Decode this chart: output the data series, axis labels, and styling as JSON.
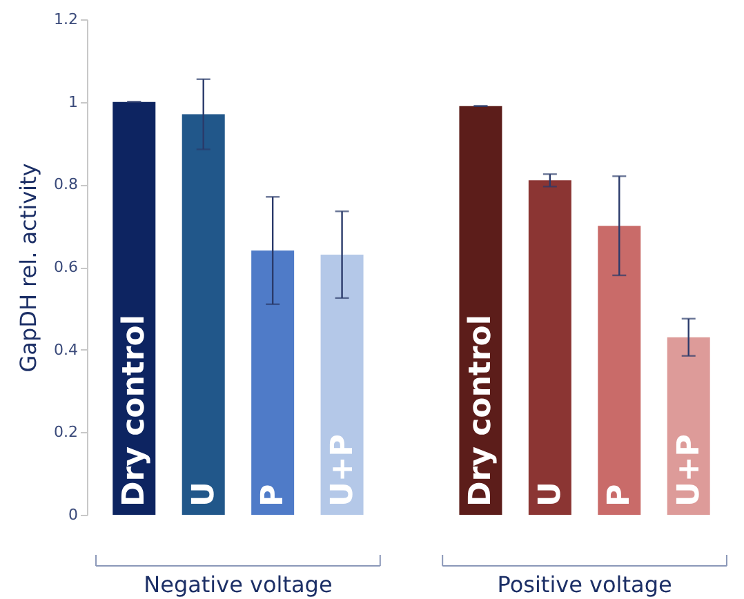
{
  "chart_data": {
    "type": "bar",
    "ylabel": "GapDH rel. activity",
    "categories": [
      "Dry control",
      "U",
      "P",
      "U+P",
      null,
      "Dry control",
      "U",
      "P",
      "U+P"
    ],
    "values": [
      1.0,
      0.97,
      0.64,
      0.63,
      null,
      0.99,
      0.81,
      0.7,
      0.43
    ],
    "errors": [
      0,
      0.085,
      0.13,
      0.105,
      null,
      0,
      0.015,
      0.12,
      0.045
    ],
    "colors": [
      "#0d2461",
      "#21578a",
      "#4f7bc8",
      "#b4c8e8",
      null,
      "#5c1d1a",
      "#8b3533",
      "#c96b69",
      "#dd9b99"
    ],
    "ylim": [
      0,
      1.2
    ],
    "yticks": [
      0,
      0.2,
      0.4,
      0.6,
      0.8,
      1,
      1.2
    ],
    "annotations": [
      "Negative voltage",
      "Positive voltage"
    ],
    "grid": false
  }
}
